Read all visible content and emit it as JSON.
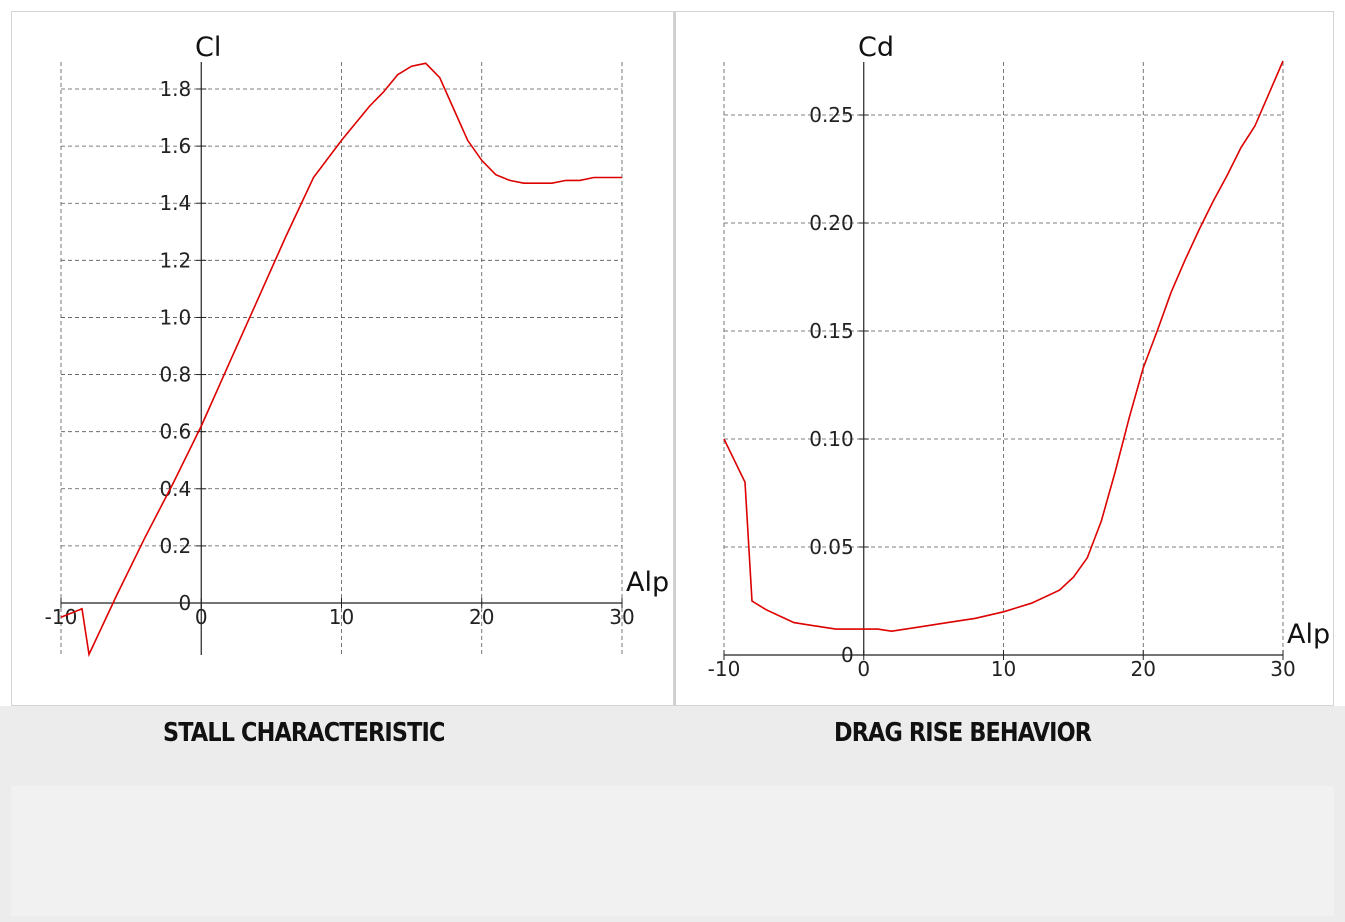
{
  "chart_data": [
    {
      "type": "line",
      "title": "STALL CHARACTERISTIC",
      "xlabel": "Alp",
      "ylabel": "Cl",
      "xlim": [
        -10,
        30
      ],
      "ylim": [
        -0.18,
        1.9
      ],
      "xticks": [
        -10,
        0,
        10,
        20,
        30
      ],
      "xtick_labels": [
        "-10",
        "0",
        "10",
        "20",
        "30"
      ],
      "yticks": [
        0,
        0.2,
        0.4,
        0.6,
        0.8,
        1.0,
        1.2,
        1.4,
        1.6,
        1.8
      ],
      "ytick_labels": [
        "0",
        "0.2",
        "0.4",
        "0.6",
        "0.8",
        "1.0",
        "1.2",
        "1.4",
        "1.6",
        "1.8"
      ],
      "grid": true,
      "color": "#dd0000",
      "series": [
        {
          "x": [
            -10,
            -9,
            -8.5,
            -8,
            -6,
            -4,
            -2,
            0,
            2,
            4,
            6,
            8,
            10,
            12,
            13,
            14,
            15,
            16,
            17,
            18,
            19,
            20,
            21,
            22,
            23,
            24,
            25,
            26,
            27,
            28,
            29,
            30
          ],
          "y": [
            -0.05,
            -0.03,
            -0.02,
            -0.18,
            0.03,
            0.23,
            0.42,
            0.62,
            0.84,
            1.06,
            1.28,
            1.49,
            1.62,
            1.74,
            1.79,
            1.85,
            1.88,
            1.89,
            1.84,
            1.73,
            1.62,
            1.55,
            1.5,
            1.48,
            1.47,
            1.47,
            1.47,
            1.48,
            1.48,
            1.49,
            1.49,
            1.49
          ]
        }
      ]
    },
    {
      "type": "line",
      "title": "DRAG RISE BEHAVIOR",
      "xlabel": "Alp",
      "ylabel": "Cd",
      "xlim": [
        -10,
        30
      ],
      "ylim": [
        0,
        0.275
      ],
      "xticks": [
        -10,
        0,
        10,
        20,
        30
      ],
      "xtick_labels": [
        "-10",
        "0",
        "10",
        "20",
        "30"
      ],
      "yticks": [
        0,
        0.05,
        0.1,
        0.15,
        0.2,
        0.25
      ],
      "ytick_labels": [
        "0",
        "0.05",
        "0.10",
        "0.15",
        "0.20",
        "0.25"
      ],
      "grid": true,
      "color": "#dd0000",
      "series": [
        {
          "x": [
            -10,
            -8.5,
            -8,
            -7,
            -6,
            -5,
            -4,
            -3,
            -2,
            0,
            1,
            2,
            4,
            6,
            8,
            10,
            12,
            14,
            15,
            16,
            17,
            18,
            19,
            20,
            21,
            22,
            23,
            24,
            25,
            26,
            27,
            28,
            29,
            30
          ],
          "y": [
            0.1,
            0.08,
            0.025,
            0.021,
            0.018,
            0.015,
            0.014,
            0.013,
            0.012,
            0.012,
            0.012,
            0.011,
            0.013,
            0.015,
            0.017,
            0.02,
            0.024,
            0.03,
            0.036,
            0.045,
            0.062,
            0.085,
            0.11,
            0.133,
            0.15,
            0.168,
            0.183,
            0.197,
            0.21,
            0.222,
            0.235,
            0.245,
            0.26,
            0.275
          ]
        }
      ]
    }
  ]
}
